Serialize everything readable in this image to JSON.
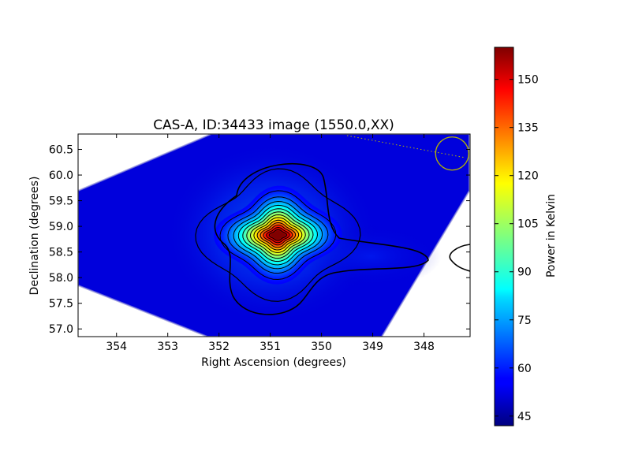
{
  "chart_data": {
    "type": "heatmap",
    "title": "CAS-A, ID:34433 image (1550.0,XX)",
    "xlabel": "Right Ascension (degrees)",
    "ylabel": "Declination (degrees)",
    "xlim": [
      354.75,
      347.1
    ],
    "ylim": [
      56.85,
      60.8
    ],
    "x_ticks": [
      354,
      353,
      352,
      351,
      350,
      349,
      348
    ],
    "y_ticks": [
      "60.5",
      "60.0",
      "59.5",
      "59.0",
      "58.5",
      "58.0",
      "57.5",
      "57.0"
    ],
    "colorbar": {
      "label": "Power in Kelvin",
      "range": [
        42,
        160
      ],
      "ticks": [
        45,
        60,
        75,
        90,
        105,
        120,
        135,
        150
      ],
      "colormap": "jet"
    },
    "peak": {
      "ra": 350.85,
      "dec": 58.83,
      "value": 160
    },
    "background_level": 45,
    "contour_levels": [
      50,
      55,
      60,
      68,
      76,
      84,
      92,
      100,
      108,
      116,
      124,
      132,
      140,
      148,
      156
    ],
    "beam_marker": {
      "ra": 347.45,
      "dec": 60.42,
      "color": "#b5b500"
    }
  }
}
